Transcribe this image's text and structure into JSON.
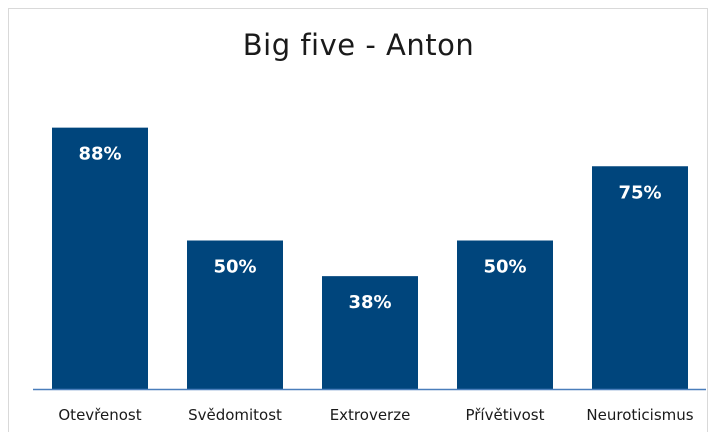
{
  "chart_data": {
    "type": "bar",
    "title": "Big five - Anton",
    "categories": [
      "Otevřenost",
      "Svědomitost",
      "Extroverze",
      "Přívětivost",
      "Neuroticismus"
    ],
    "values": [
      88,
      50,
      38,
      50,
      75
    ],
    "value_labels": [
      "88%",
      "50%",
      "38%",
      "50%",
      "75%"
    ],
    "ylim": [
      0,
      100
    ],
    "grid": false,
    "legend": "none",
    "bar_color": "#00457c",
    "axis_color": "#4a7ebb"
  }
}
